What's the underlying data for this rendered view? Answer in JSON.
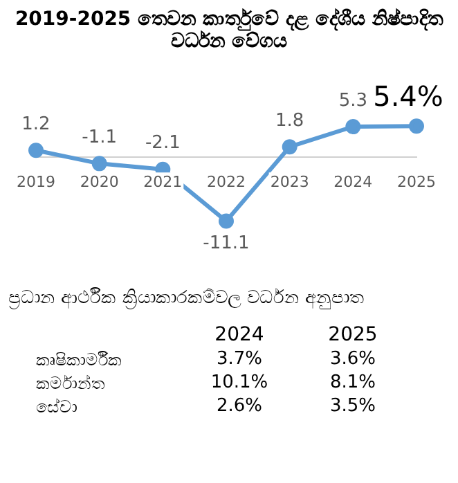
{
  "chart_data": [
    {
      "type": "line",
      "title": "2019-2025 තෙවන කාර්තුවේ දළ දේශීය නිෂ්පාදිත වර්ධන වේගය",
      "categories": [
        "2019",
        "2020",
        "2021",
        "2022",
        "2023",
        "2024",
        "2025"
      ],
      "series": [
        {
          "color": "#5b9bd5",
          "values": [
            1.2,
            -1.1,
            -2.1,
            -11.1,
            1.8,
            5.3,
            5.4
          ],
          "value_labels": [
            "1.2",
            "-1.1",
            "-2.1",
            "-11.1",
            "1.8",
            "5.3",
            "5.4%"
          ]
        }
      ],
      "marker": "circle",
      "grid": false,
      "legend": false
    },
    {
      "type": "other",
      "title": "ප්‍රධාන ආර්ථික ක්‍රියාකාරකම්වල වර්ධන අනුපාත",
      "categories": [
        "කෘෂිකාර්මික",
        "කර්මාන්ත",
        "සේවා"
      ],
      "series": [
        {
          "name": "2024",
          "values": [
            3.7,
            10.1,
            2.6
          ],
          "value_labels": [
            "3.7%",
            "10.1%",
            "2.6%"
          ]
        },
        {
          "name": "2025",
          "values": [
            3.6,
            8.1,
            3.5
          ],
          "value_labels": [
            "3.6%",
            "8.1%",
            "3.5%"
          ]
        }
      ]
    }
  ]
}
